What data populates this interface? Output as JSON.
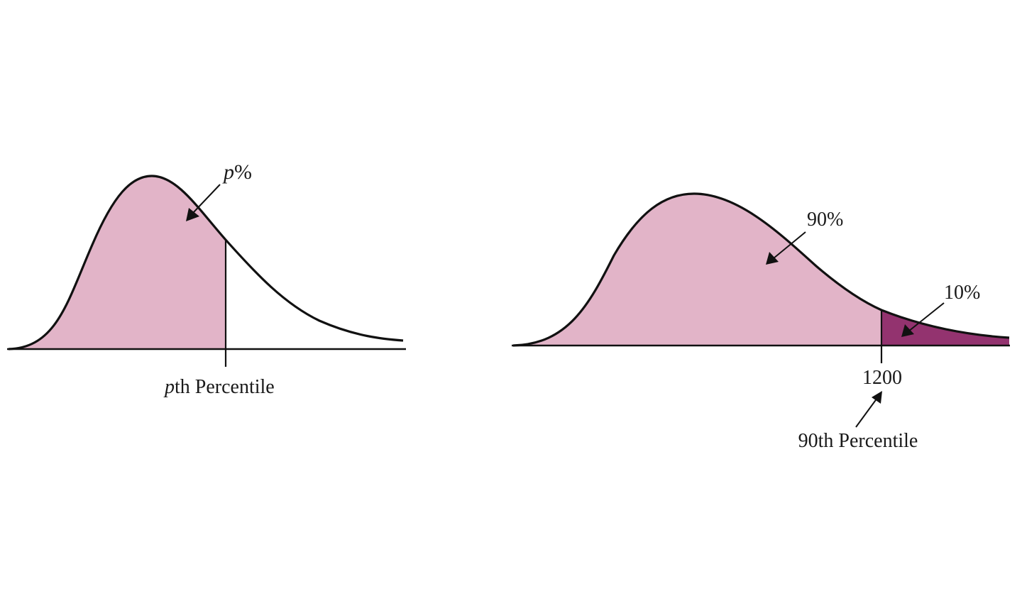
{
  "colors": {
    "main_area": "#e2b4c8",
    "tail_area": "#93336f",
    "line": "#111111",
    "background": "#ffffff"
  },
  "left_diagram": {
    "area_label_italic": "p",
    "area_label_rest": "%",
    "percentile_label_italic": "p",
    "percentile_label_rest": "th Percentile"
  },
  "right_diagram": {
    "main_area_label": "90%",
    "tail_area_label": "10%",
    "cut_value_label": "1200",
    "percentile_label": "90th Percentile"
  }
}
